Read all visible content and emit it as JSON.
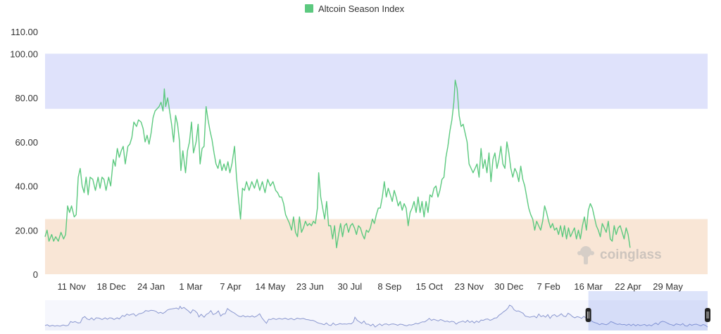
{
  "chart_data": {
    "type": "line",
    "title": "",
    "legend": {
      "entries": [
        "Altcoin Season Index"
      ],
      "placement": "top-center"
    },
    "series": [
      {
        "name": "Altcoin Season Index",
        "color": "#5cc97f",
        "points": [
          [
            0,
            17
          ],
          [
            0.3,
            20
          ],
          [
            0.6,
            15
          ],
          [
            1,
            18
          ],
          [
            1.3,
            15
          ],
          [
            1.6,
            17
          ],
          [
            2,
            15
          ],
          [
            2.4,
            19
          ],
          [
            2.8,
            16
          ],
          [
            3.1,
            18
          ],
          [
            3.4,
            31
          ],
          [
            3.7,
            28
          ],
          [
            4,
            31
          ],
          [
            4.4,
            26
          ],
          [
            4.7,
            27
          ],
          [
            5,
            44
          ],
          [
            5.3,
            48
          ],
          [
            5.6,
            40
          ],
          [
            5.9,
            37
          ],
          [
            6.2,
            44
          ],
          [
            6.5,
            36
          ],
          [
            6.8,
            44
          ],
          [
            7.2,
            43
          ],
          [
            7.6,
            38
          ],
          [
            8,
            44
          ],
          [
            8.3,
            39
          ],
          [
            8.6,
            44
          ],
          [
            8.9,
            43
          ],
          [
            9.2,
            38
          ],
          [
            9.6,
            44
          ],
          [
            9.9,
            40
          ],
          [
            10.3,
            52
          ],
          [
            10.6,
            49
          ],
          [
            10.9,
            57
          ],
          [
            11.2,
            53
          ],
          [
            11.5,
            56
          ],
          [
            11.8,
            58
          ],
          [
            12.1,
            50
          ],
          [
            12.5,
            58
          ],
          [
            12.8,
            59
          ],
          [
            13.1,
            62
          ],
          [
            13.4,
            69
          ],
          [
            13.8,
            67
          ],
          [
            14.1,
            70
          ],
          [
            14.5,
            69
          ],
          [
            14.8,
            66
          ],
          [
            15.1,
            60
          ],
          [
            15.4,
            63
          ],
          [
            15.7,
            59
          ],
          [
            16,
            64
          ],
          [
            16.3,
            71
          ],
          [
            16.6,
            74
          ],
          [
            16.9,
            75
          ],
          [
            17.2,
            76
          ],
          [
            17.5,
            78
          ],
          [
            17.8,
            74
          ],
          [
            18,
            84
          ],
          [
            18.2,
            76
          ],
          [
            18.5,
            80
          ],
          [
            18.8,
            74
          ],
          [
            19.1,
            68
          ],
          [
            19.4,
            60
          ],
          [
            19.7,
            72
          ],
          [
            20,
            68
          ],
          [
            20.3,
            60
          ],
          [
            20.5,
            47
          ],
          [
            20.8,
            56
          ],
          [
            21.2,
            46
          ],
          [
            21.5,
            56
          ],
          [
            21.8,
            60
          ],
          [
            22.1,
            69
          ],
          [
            22.4,
            55
          ],
          [
            22.8,
            60
          ],
          [
            23.1,
            68
          ],
          [
            23.4,
            50
          ],
          [
            23.7,
            57
          ],
          [
            24,
            58
          ],
          [
            24.3,
            76
          ],
          [
            24.6,
            70
          ],
          [
            24.9,
            65
          ],
          [
            25.2,
            61
          ],
          [
            25.5,
            55
          ],
          [
            25.8,
            50
          ],
          [
            26.1,
            48
          ],
          [
            26.4,
            52
          ],
          [
            26.7,
            47
          ],
          [
            27,
            50
          ],
          [
            27.3,
            47
          ],
          [
            27.6,
            51
          ],
          [
            27.9,
            46
          ],
          [
            28.2,
            50
          ],
          [
            28.6,
            58
          ],
          [
            28.9,
            44
          ],
          [
            29.2,
            34
          ],
          [
            29.5,
            25
          ],
          [
            29.8,
            39
          ],
          [
            30.1,
            38
          ],
          [
            30.4,
            42
          ],
          [
            30.8,
            38
          ],
          [
            31.2,
            42
          ],
          [
            31.6,
            39
          ],
          [
            32,
            43
          ],
          [
            32.4,
            38
          ],
          [
            32.8,
            42
          ],
          [
            33.2,
            37
          ],
          [
            33.6,
            43
          ],
          [
            34,
            40
          ],
          [
            34.4,
            42
          ],
          [
            34.8,
            38
          ],
          [
            35.1,
            37
          ],
          [
            35.4,
            35
          ],
          [
            35.7,
            35
          ],
          [
            36,
            32
          ],
          [
            36.3,
            27
          ],
          [
            36.6,
            25
          ],
          [
            36.9,
            23
          ],
          [
            37.2,
            20
          ],
          [
            37.5,
            26
          ],
          [
            37.8,
            19
          ],
          [
            38.1,
            17
          ],
          [
            38.4,
            26
          ],
          [
            38.7,
            19
          ],
          [
            39,
            21
          ],
          [
            39.3,
            24
          ],
          [
            39.6,
            22
          ],
          [
            39.9,
            23
          ],
          [
            40.2,
            22
          ],
          [
            40.5,
            24
          ],
          [
            40.8,
            23
          ],
          [
            41.1,
            30
          ],
          [
            41.3,
            46
          ],
          [
            41.6,
            35
          ],
          [
            41.9,
            30
          ],
          [
            42.2,
            25
          ],
          [
            42.5,
            33
          ],
          [
            42.8,
            22
          ],
          [
            43.1,
            22
          ],
          [
            43.4,
            16
          ],
          [
            43.7,
            22
          ],
          [
            44,
            12
          ],
          [
            44.3,
            18
          ],
          [
            44.6,
            23
          ],
          [
            44.9,
            17
          ],
          [
            45.2,
            22
          ],
          [
            45.5,
            23
          ],
          [
            45.8,
            19
          ],
          [
            46.1,
            22
          ],
          [
            46.4,
            23
          ],
          [
            46.7,
            21
          ],
          [
            47,
            18
          ],
          [
            47.3,
            22
          ],
          [
            47.6,
            21
          ],
          [
            47.9,
            18
          ],
          [
            48.2,
            16
          ],
          [
            48.5,
            20
          ],
          [
            48.8,
            19
          ],
          [
            49.1,
            21
          ],
          [
            49.4,
            25
          ],
          [
            49.7,
            23
          ],
          [
            50,
            27
          ],
          [
            50.3,
            30
          ],
          [
            50.6,
            30
          ],
          [
            50.9,
            35
          ],
          [
            51.2,
            42
          ],
          [
            51.5,
            35
          ],
          [
            51.8,
            39
          ],
          [
            52.1,
            36
          ],
          [
            52.4,
            33
          ],
          [
            52.7,
            38
          ],
          [
            53,
            35
          ],
          [
            53.3,
            31
          ],
          [
            53.6,
            33
          ],
          [
            53.9,
            29
          ],
          [
            54.2,
            32
          ],
          [
            54.5,
            30
          ],
          [
            54.8,
            22
          ],
          [
            55.1,
            28
          ],
          [
            55.4,
            30
          ],
          [
            55.7,
            33
          ],
          [
            56,
            28
          ],
          [
            56.3,
            35
          ],
          [
            56.6,
            28
          ],
          [
            56.9,
            33
          ],
          [
            57.2,
            26
          ],
          [
            57.5,
            33
          ],
          [
            57.8,
            28
          ],
          [
            58.1,
            36
          ],
          [
            58.4,
            35
          ],
          [
            58.7,
            39
          ],
          [
            59,
            40
          ],
          [
            59.3,
            35
          ],
          [
            59.6,
            38
          ],
          [
            59.9,
            43
          ],
          [
            60.2,
            44
          ],
          [
            60.5,
            53
          ],
          [
            60.8,
            58
          ],
          [
            61.1,
            65
          ],
          [
            61.4,
            70
          ],
          [
            61.7,
            78
          ],
          [
            61.9,
            88
          ],
          [
            62.2,
            84
          ],
          [
            62.5,
            72
          ],
          [
            62.8,
            67
          ],
          [
            63.1,
            68
          ],
          [
            63.4,
            64
          ],
          [
            63.7,
            60
          ],
          [
            64,
            50
          ],
          [
            64.3,
            48
          ],
          [
            64.6,
            46
          ],
          [
            64.9,
            48
          ],
          [
            65.2,
            50
          ],
          [
            65.5,
            44
          ],
          [
            65.8,
            57
          ],
          [
            66.1,
            48
          ],
          [
            66.4,
            52
          ],
          [
            66.7,
            46
          ],
          [
            67,
            55
          ],
          [
            67.3,
            42
          ],
          [
            67.6,
            52
          ],
          [
            67.9,
            55
          ],
          [
            68.2,
            48
          ],
          [
            68.5,
            52
          ],
          [
            68.8,
            58
          ],
          [
            69.1,
            50
          ],
          [
            69.4,
            48
          ],
          [
            69.7,
            60
          ],
          [
            70,
            55
          ],
          [
            70.3,
            48
          ],
          [
            70.6,
            44
          ],
          [
            70.9,
            48
          ],
          [
            71.2,
            46
          ],
          [
            71.5,
            42
          ],
          [
            71.8,
            49
          ],
          [
            72.1,
            43
          ],
          [
            72.4,
            40
          ],
          [
            72.7,
            35
          ],
          [
            73,
            30
          ],
          [
            73.3,
            27
          ],
          [
            73.6,
            25
          ],
          [
            73.9,
            20
          ],
          [
            74.2,
            24
          ],
          [
            74.5,
            22
          ],
          [
            74.8,
            20
          ],
          [
            75.1,
            24
          ],
          [
            75.4,
            31
          ],
          [
            75.7,
            28
          ],
          [
            76,
            24
          ],
          [
            76.3,
            21
          ],
          [
            76.6,
            23
          ],
          [
            76.9,
            20
          ],
          [
            77.2,
            21
          ],
          [
            77.5,
            18
          ],
          [
            77.8,
            22
          ],
          [
            78.1,
            17
          ],
          [
            78.4,
            22
          ],
          [
            78.7,
            16
          ],
          [
            79,
            21
          ],
          [
            79.3,
            17
          ],
          [
            79.6,
            19
          ],
          [
            79.9,
            21
          ],
          [
            80.2,
            16
          ],
          [
            80.5,
            20
          ],
          [
            80.8,
            16
          ],
          [
            81.1,
            22
          ],
          [
            81.4,
            26
          ],
          [
            81.7,
            20
          ],
          [
            82,
            29
          ],
          [
            82.3,
            32
          ],
          [
            82.6,
            30
          ],
          [
            82.9,
            26
          ],
          [
            83.2,
            22
          ],
          [
            83.5,
            20
          ],
          [
            83.8,
            17
          ],
          [
            84.1,
            23
          ],
          [
            84.4,
            21
          ],
          [
            84.7,
            19
          ],
          [
            85,
            24
          ],
          [
            85.3,
            16
          ],
          [
            85.6,
            15
          ],
          [
            85.9,
            22
          ],
          [
            86.2,
            18
          ],
          [
            86.5,
            21
          ],
          [
            86.8,
            22
          ],
          [
            87.1,
            19
          ],
          [
            87.4,
            16
          ],
          [
            87.7,
            21
          ],
          [
            88,
            18
          ],
          [
            88.3,
            12
          ]
        ]
      }
    ],
    "x_ticks": [
      {
        "pos": 4,
        "label": "11 Nov"
      },
      {
        "pos": 10,
        "label": "18 Dec"
      },
      {
        "pos": 16,
        "label": "24 Jan"
      },
      {
        "pos": 22,
        "label": "1 Mar"
      },
      {
        "pos": 28,
        "label": "7 Apr"
      },
      {
        "pos": 34,
        "label": "14 May"
      },
      {
        "pos": 40,
        "label": "23 Jun"
      },
      {
        "pos": 46,
        "label": "30 Jul"
      },
      {
        "pos": 52,
        "label": "8 Sep"
      },
      {
        "pos": 58,
        "label": "15 Oct"
      },
      {
        "pos": 64,
        "label": "23 Nov"
      },
      {
        "pos": 70,
        "label": "30 Dec"
      },
      {
        "pos": 76,
        "label": "7 Feb"
      },
      {
        "pos": 82,
        "label": "16 Mar"
      },
      {
        "pos": 88,
        "label": "22 Apr"
      },
      {
        "pos": 94,
        "label": "29 May"
      }
    ],
    "xlim": [
      0,
      100
    ],
    "y_ticks": [
      "0",
      "20.00",
      "40.00",
      "60.00",
      "80.00",
      "100.00",
      "110.00"
    ],
    "ylim": [
      0,
      110
    ],
    "bands": [
      {
        "from": 75,
        "to": 100,
        "color": "#dfe2fb"
      },
      {
        "from": 0,
        "to": 25,
        "color": "#f9e6d6"
      }
    ],
    "grid": false,
    "watermark": "coinglass",
    "navigator": {
      "selection_start": 82,
      "selection_end": 100
    }
  }
}
